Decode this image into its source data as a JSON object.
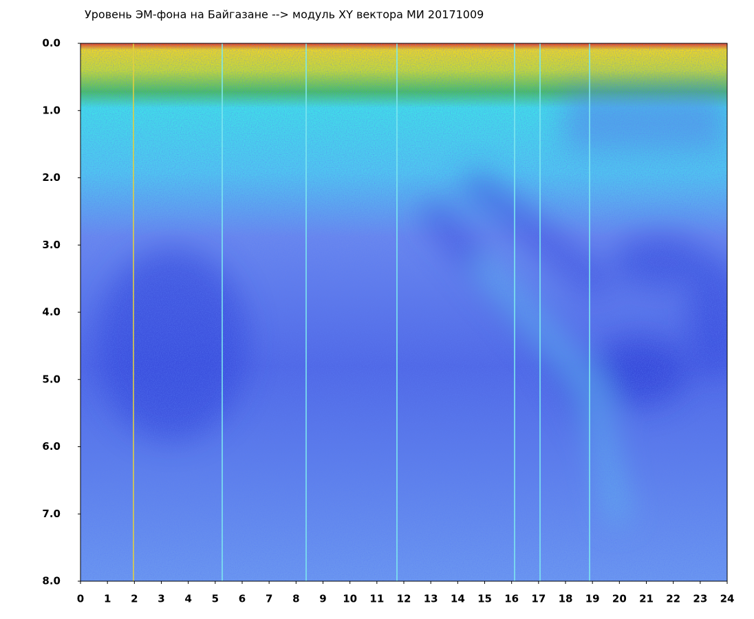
{
  "chart_data": {
    "type": "heatmap",
    "title": "Уровень ЭМ-фона на Байгазане  -->  модуль XY вектора МИ  20171009",
    "xlim": [
      0,
      24
    ],
    "xticks": [
      0,
      1,
      2,
      3,
      4,
      5,
      6,
      7,
      8,
      9,
      10,
      11,
      12,
      13,
      14,
      15,
      16,
      17,
      18,
      19,
      20,
      21,
      22,
      23,
      24
    ],
    "ylim": [
      0,
      8
    ],
    "yticks": [
      {
        "value": 0,
        "label": "0.0"
      },
      {
        "value": 1,
        "label": "1.0"
      },
      {
        "value": 2,
        "label": "2.0"
      },
      {
        "value": 3,
        "label": "3.0"
      },
      {
        "value": 4,
        "label": "4.0"
      },
      {
        "value": 5,
        "label": "5.0"
      },
      {
        "value": 6,
        "label": "6.0"
      },
      {
        "value": 7,
        "label": "7.0"
      },
      {
        "value": 8,
        "label": "8.0"
      }
    ],
    "y_inverted": true
  }
}
